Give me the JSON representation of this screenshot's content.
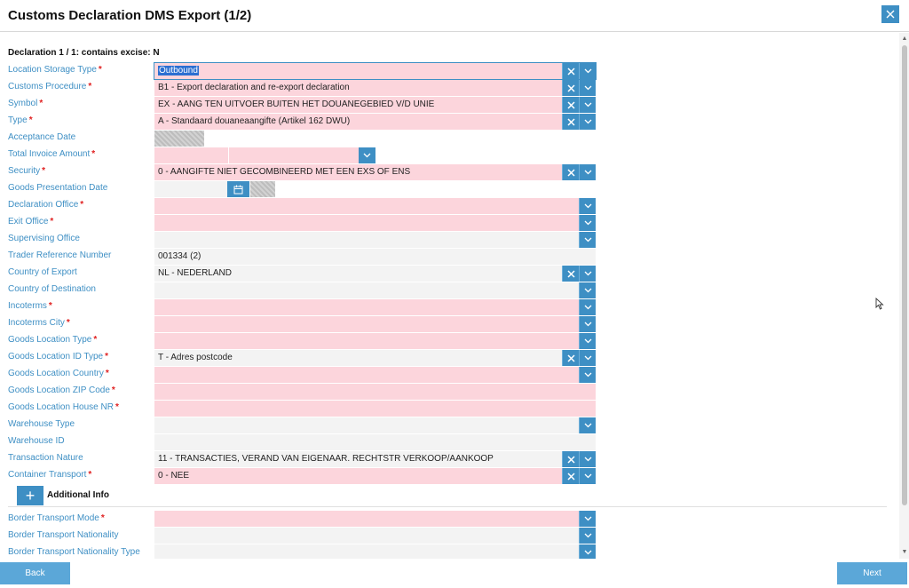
{
  "window": {
    "title": "Customs Declaration DMS Export (1/2)"
  },
  "declaration_header": "Declaration 1 / 1: contains excise: N",
  "fields": [
    {
      "label": "Location Storage Type",
      "required": true,
      "value": "Outbound"
    },
    {
      "label": "Customs Procedure",
      "required": true,
      "value": "B1 - Export declaration and re-export declaration"
    },
    {
      "label": "Symbol",
      "required": true,
      "value": "EX - AANG TEN UITVOER BUITEN HET DOUANEGEBIED V/D UNIE"
    },
    {
      "label": "Type",
      "required": true,
      "value": "A - Standaard douaneaangifte (Artikel 162 DWU)"
    },
    {
      "label": "Acceptance Date",
      "required": false,
      "value": ""
    },
    {
      "label": "Total Invoice Amount",
      "required": true,
      "value": ""
    },
    {
      "label": "Security",
      "required": true,
      "value": "0 - AANGIFTE NIET GECOMBINEERD MET EEN EXS OF ENS"
    },
    {
      "label": "Goods Presentation Date",
      "required": false,
      "value": ""
    },
    {
      "label": "Declaration Office",
      "required": true,
      "value": ""
    },
    {
      "label": "Exit Office",
      "required": true,
      "value": ""
    },
    {
      "label": "Supervising Office",
      "required": false,
      "value": ""
    },
    {
      "label": "Trader Reference Number",
      "required": false,
      "value": "001334 (2)"
    },
    {
      "label": "Country of Export",
      "required": false,
      "value": "NL - NEDERLAND"
    },
    {
      "label": "Country of Destination",
      "required": false,
      "value": ""
    },
    {
      "label": "Incoterms",
      "required": true,
      "value": ""
    },
    {
      "label": "Incoterms City",
      "required": true,
      "value": ""
    },
    {
      "label": "Goods Location Type",
      "required": true,
      "value": ""
    },
    {
      "label": "Goods Location ID Type",
      "required": true,
      "value": "T - Adres postcode"
    },
    {
      "label": "Goods Location Country",
      "required": true,
      "value": ""
    },
    {
      "label": "Goods Location ZIP Code",
      "required": true,
      "value": ""
    },
    {
      "label": "Goods Location House NR",
      "required": true,
      "value": ""
    },
    {
      "label": "Warehouse Type",
      "required": false,
      "value": ""
    },
    {
      "label": "Warehouse ID",
      "required": false,
      "value": ""
    },
    {
      "label": "Transaction Nature",
      "required": false,
      "value": "11 - TRANSACTIES, VERAND VAN EIGENAAR. RECHTSTR VERKOOP/AANKOOP"
    },
    {
      "label": "Container Transport",
      "required": true,
      "value": "0 - NEE"
    }
  ],
  "additional_info": {
    "label": "Additional Info",
    "add_symbol": "+"
  },
  "transport_fields": [
    {
      "label": "Border Transport Mode",
      "required": true,
      "value": ""
    },
    {
      "label": "Border Transport Nationality",
      "required": false,
      "value": ""
    },
    {
      "label": "Border Transport Nationality Type",
      "required": false,
      "value": ""
    }
  ],
  "required_marker": "*",
  "footer": {
    "back_label": "Back",
    "next_label": "Next"
  },
  "colors": {
    "accent": "#3e8fc4",
    "required_bg": "#fcd5dc",
    "label": "#3e8fc4",
    "required_marker": "#e02020"
  },
  "icons": [
    "close-icon",
    "clear-icon",
    "chevron-down-icon",
    "calendar-icon",
    "plus-icon",
    "mouse-pointer-icon"
  ]
}
